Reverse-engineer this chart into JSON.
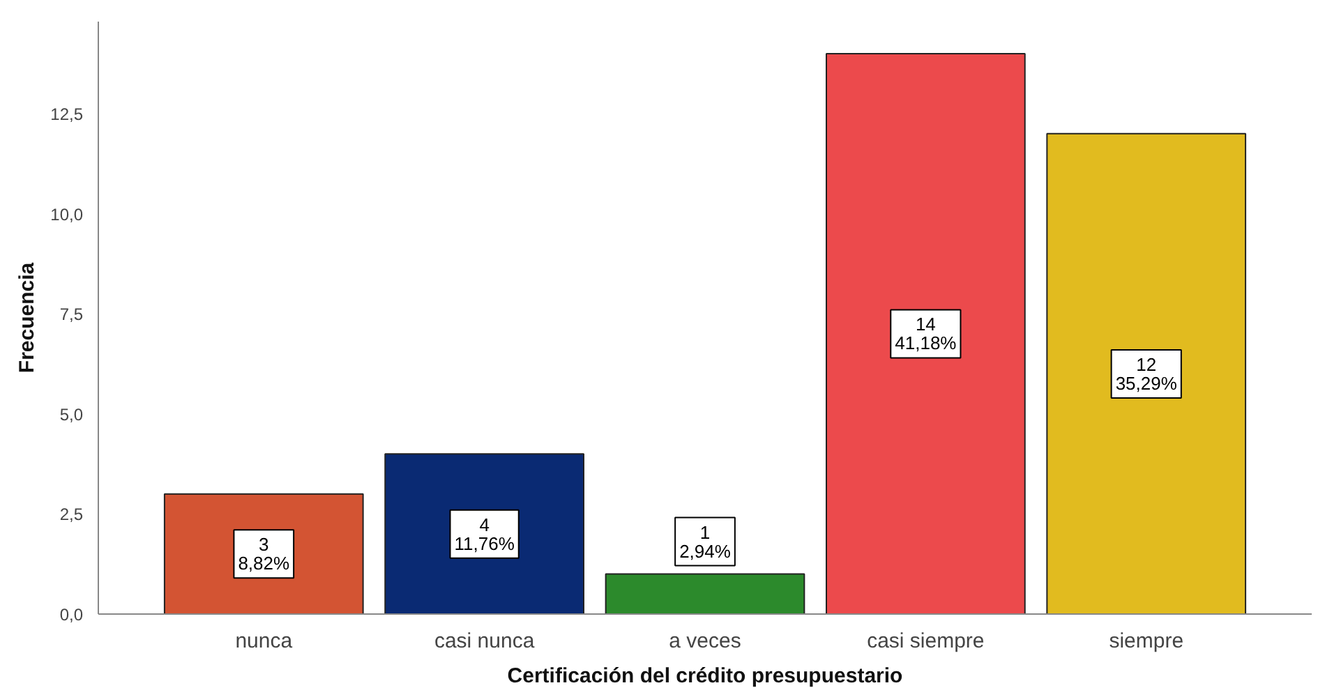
{
  "chart_data": {
    "type": "bar",
    "xlabel": "Certificación del crédito presupuestario",
    "ylabel": "Frecuencia",
    "categories": [
      "nunca",
      "casi nunca",
      "a veces",
      "casi siempre",
      "siempre"
    ],
    "values": [
      3,
      4,
      1,
      14,
      12
    ],
    "colors": [
      "#d35433",
      "#0a2a73",
      "#2c8a2c",
      "#ec4a4c",
      "#e1bb1f"
    ],
    "value_labels": [
      "3\n8,82%",
      "4\n11,76%",
      "1\n2,94%",
      "14\n41,18%",
      "12\n35,29%"
    ],
    "ylim": [
      0,
      14.8
    ],
    "yticks": [
      {
        "value": 0,
        "label": "0,0"
      },
      {
        "value": 2.5,
        "label": "2,5"
      },
      {
        "value": 5,
        "label": "5,0"
      },
      {
        "value": 7.5,
        "label": "7,5"
      },
      {
        "value": 10,
        "label": "10,0"
      },
      {
        "value": 12.5,
        "label": "12,5"
      }
    ],
    "grid": false
  }
}
